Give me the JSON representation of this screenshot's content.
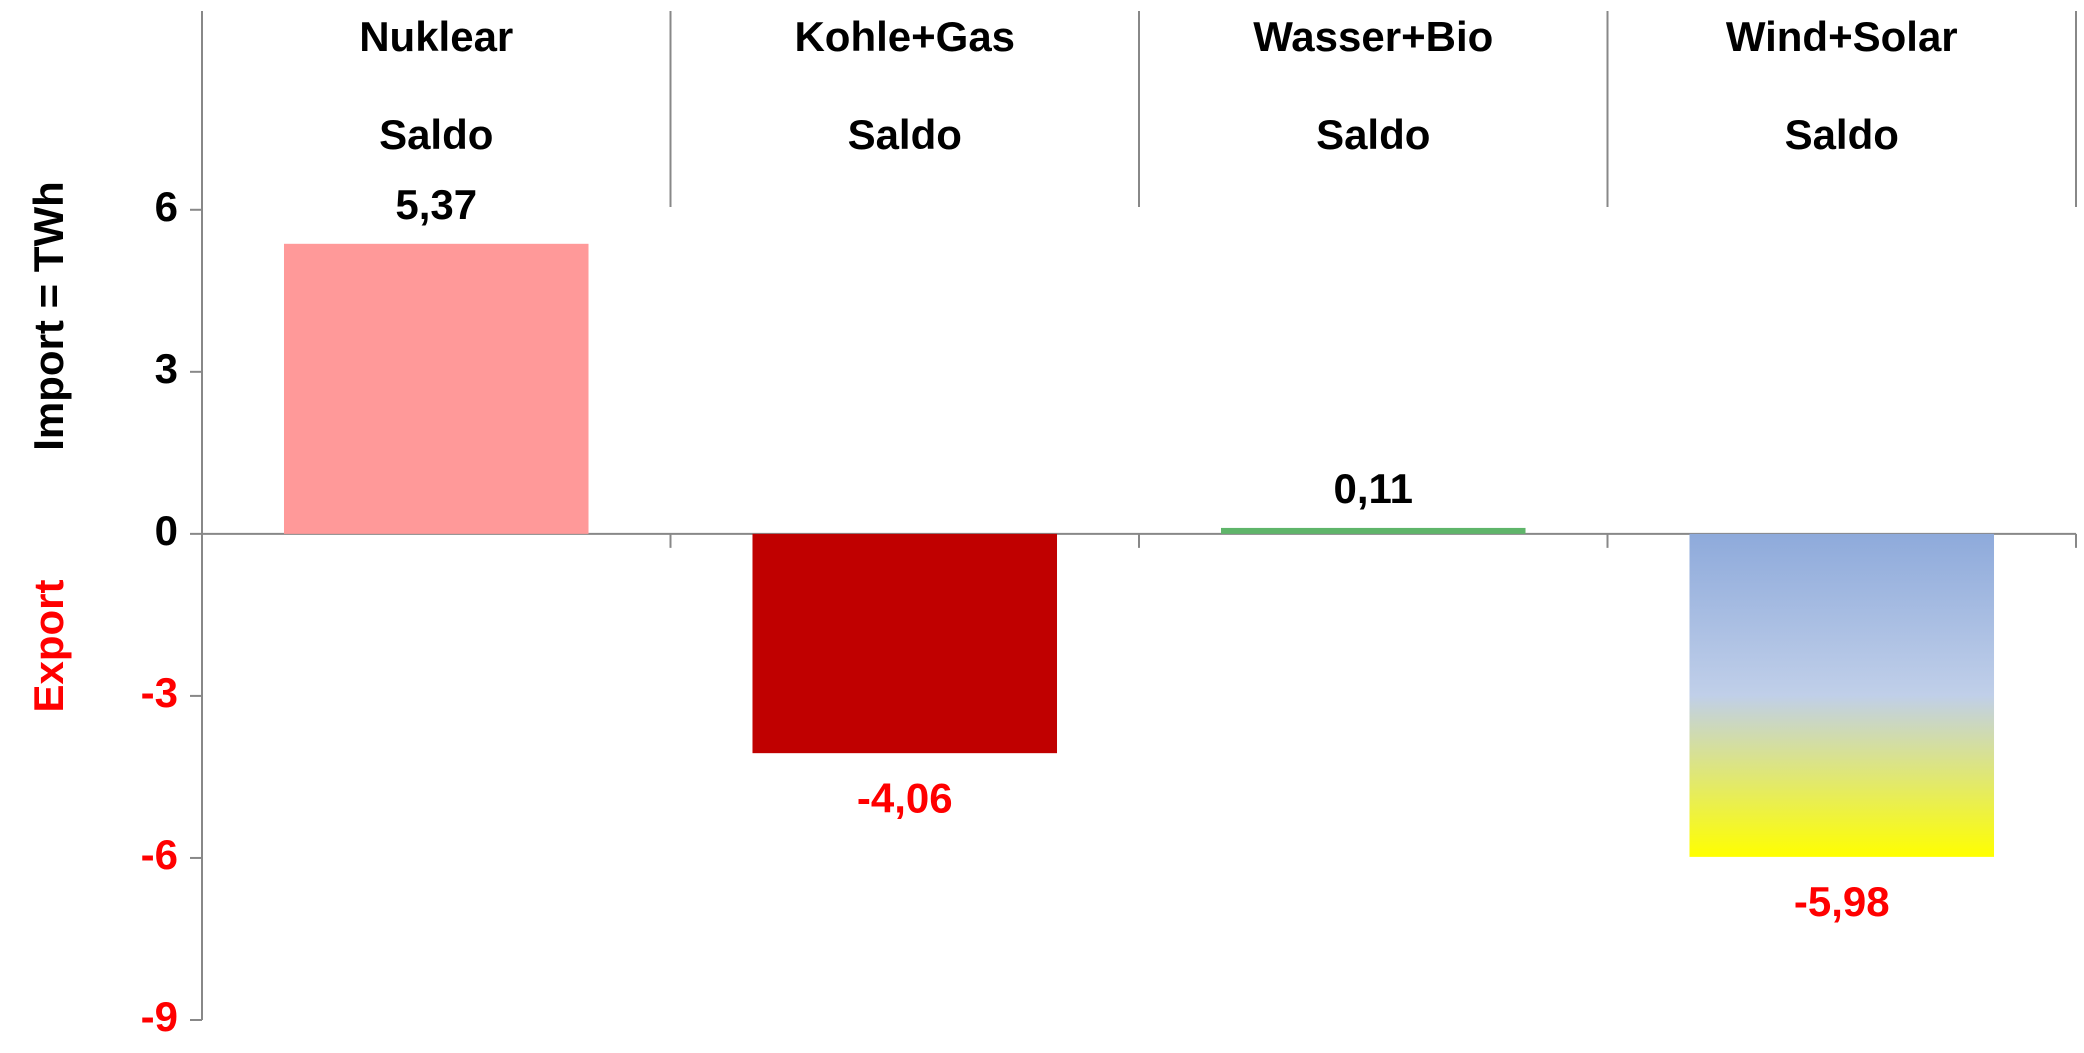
{
  "chart_data": {
    "type": "bar",
    "categories": [
      [
        "Nuklear",
        "Saldo"
      ],
      [
        "Kohle+Gas",
        "Saldo"
      ],
      [
        "Wasser+Bio",
        "Saldo"
      ],
      [
        "Wind+Solar",
        "Saldo"
      ]
    ],
    "values": [
      5.37,
      -4.06,
      0.11,
      -5.98
    ],
    "value_labels": [
      "5,37",
      "-4,06",
      "0,11",
      "-5,98"
    ],
    "colors": [
      "#ff9999",
      "#c00000",
      "#5fb56a",
      [
        "#8eaadb",
        "#c0cfe9",
        "#ffff00"
      ]
    ],
    "negative_color": "#ff0000",
    "y_axis_label": "Import =  TWh",
    "y_axis_label_negative": "Export",
    "ylim": [
      -9,
      9.68
    ],
    "yticks": [
      6,
      3,
      0,
      -3,
      -6,
      -9
    ]
  }
}
